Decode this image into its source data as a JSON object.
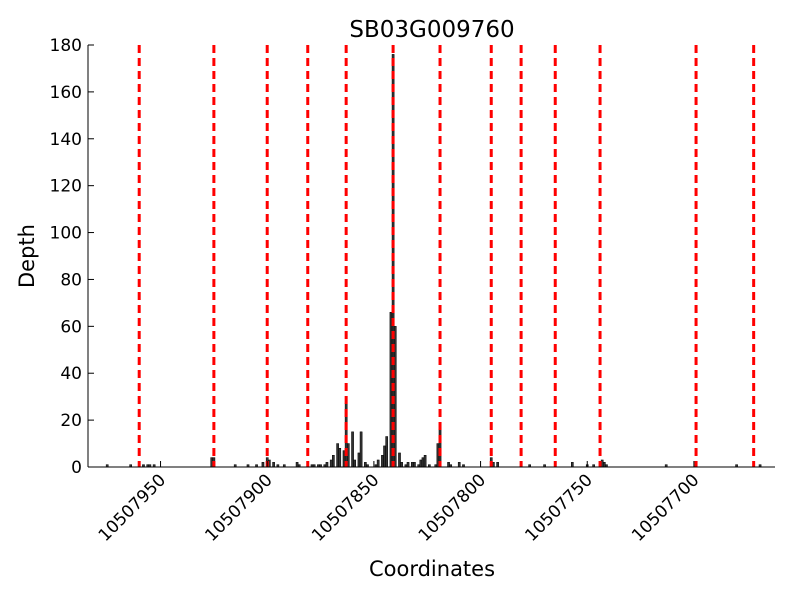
{
  "chart_data": {
    "type": "bar",
    "title": "SB03G009760",
    "x_label": "Coordinates",
    "y_label": "Depth",
    "x": [
      10507975,
      10507964,
      10507958,
      10507956,
      10507955,
      10507953,
      10507926,
      10507925,
      10507915,
      10507909,
      10507905,
      10507902,
      10507900,
      10507899,
      10507897,
      10507895,
      10507892,
      10507886,
      10507885,
      10507879,
      10507878,
      10507876,
      10507875,
      10507873,
      10507872,
      10507870,
      10507869,
      10507867,
      10507866,
      10507864,
      10507863,
      10507862,
      10507860,
      10507859,
      10507857,
      10507856,
      10507854,
      10507853,
      10507849,
      10507848,
      10507846,
      10507845,
      10507844,
      10507842,
      10507841,
      10507840,
      10507838,
      10507837,
      10507835,
      10507834,
      10507832,
      10507831,
      10507829,
      10507828,
      10507827,
      10507826,
      10507824,
      10507821,
      10507820,
      10507819,
      10507815,
      10507814,
      10507810,
      10507808,
      10507795,
      10507794,
      10507792,
      10507777,
      10507770,
      10507757,
      10507750,
      10507747,
      10507743,
      10507742,
      10507741,
      10507713,
      10507699,
      10507680,
      10507669
    ],
    "values": [
      1,
      1,
      1,
      1,
      1,
      1,
      4,
      4,
      1,
      1,
      1,
      2,
      4,
      3,
      2,
      1,
      1,
      2,
      1,
      1,
      1,
      1,
      1,
      1,
      2,
      3,
      5,
      10,
      8,
      7,
      27,
      10,
      15,
      3,
      6,
      15,
      2,
      1,
      1,
      3,
      5,
      9,
      13,
      66,
      176,
      60,
      6,
      2,
      1,
      2,
      2,
      2,
      1,
      3,
      4,
      5,
      1,
      1,
      10,
      16,
      2,
      1,
      2,
      1,
      4,
      2,
      2,
      1,
      1,
      2,
      1,
      1,
      3,
      2,
      1,
      1,
      1,
      1,
      1
    ],
    "color": "#333333",
    "vlines": [
      10507960,
      10507925,
      10507900,
      10507881,
      10507863,
      10507841,
      10507819,
      10507795,
      10507781,
      10507765,
      10507744,
      10507699,
      10507672
    ],
    "vline_color": "#ff0000",
    "xlim": [
      10507984,
      10507662
    ],
    "xticks": [
      10507950,
      10507900,
      10507850,
      10507800,
      10507750,
      10507700
    ],
    "ylim": [
      0,
      180
    ],
    "yticks": [
      0,
      20,
      40,
      60,
      80,
      100,
      120,
      140,
      160,
      180
    ]
  }
}
